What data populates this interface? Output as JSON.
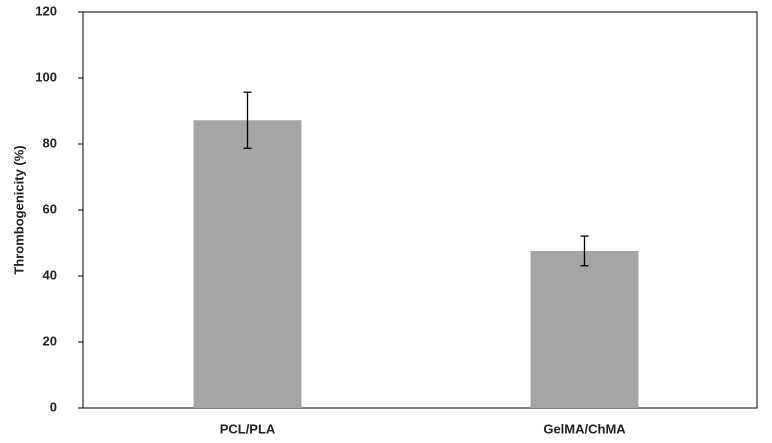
{
  "chart_data": {
    "type": "bar",
    "y_label": "Thrombogenicity (%)",
    "categories": [
      "PCL/PLA",
      "GelMA/ChMA"
    ],
    "values": [
      87.2,
      47.6
    ],
    "errors": [
      8.5,
      4.5
    ],
    "color": "#a5a5a5",
    "ylim": [
      0,
      120
    ],
    "yticks": [
      0,
      20,
      40,
      60,
      80,
      100,
      120
    ],
    "grid": false
  }
}
